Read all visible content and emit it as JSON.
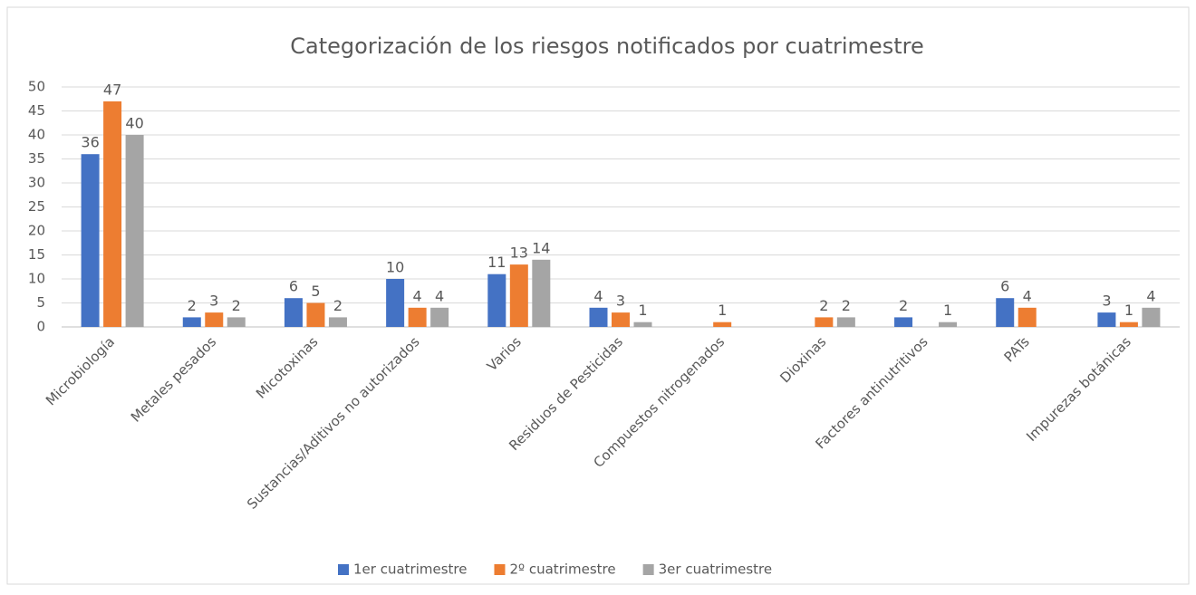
{
  "chart_data": {
    "type": "bar",
    "title": "Categorización de los riesgos notificados por cuatrimestre",
    "categories": [
      "Microbiología",
      "Metales pesados",
      "Micotoxinas",
      "Sustancias/Aditivos no autorizados",
      "Varios",
      "Residuos de Pesticidas",
      "Compuestos nitrogenados",
      "Dioxinas",
      "Factores antinutritivos",
      "PATs",
      "Impurezas botánicas"
    ],
    "series": [
      {
        "name": "1er cuatrimestre",
        "color": "#4472c4",
        "values": [
          36,
          2,
          6,
          10,
          11,
          4,
          null,
          null,
          2,
          6,
          3
        ]
      },
      {
        "name": "2º cuatrimestre",
        "color": "#ed7d31",
        "values": [
          47,
          3,
          5,
          4,
          13,
          3,
          1,
          2,
          null,
          4,
          1
        ]
      },
      {
        "name": "3er cuatrimestre",
        "color": "#a5a5a5",
        "values": [
          40,
          2,
          2,
          4,
          14,
          1,
          null,
          2,
          1,
          null,
          4
        ]
      }
    ],
    "ylim": [
      0,
      50
    ],
    "yticks": [
      0,
      5,
      10,
      15,
      20,
      25,
      30,
      35,
      40,
      45,
      50
    ],
    "grid": true,
    "legend": "bottom"
  }
}
